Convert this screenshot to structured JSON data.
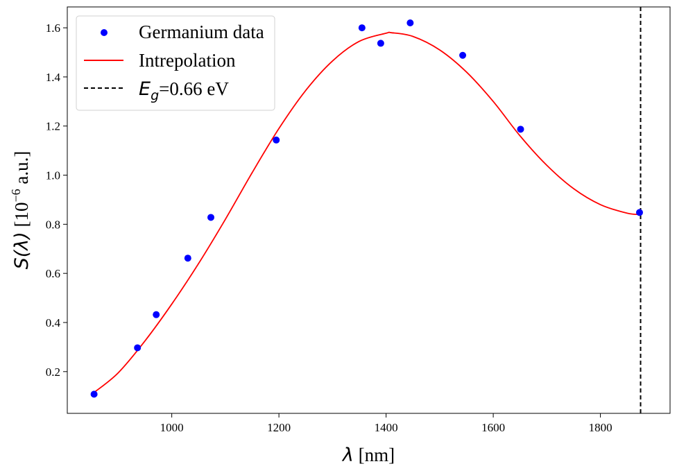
{
  "chart_data": {
    "type": "scatter",
    "title": "",
    "xlabel": {
      "symbol": "λ",
      "unit": " [nm]"
    },
    "ylabel": {
      "symbol": "S(λ)",
      "prefix": " [10",
      "exponent": "−6",
      "suffix": " a.u.]"
    },
    "xlim": [
      805,
      1930
    ],
    "ylim": [
      0.03,
      1.685
    ],
    "xticks": [
      1000,
      1200,
      1400,
      1600,
      1800
    ],
    "yticks": [
      0.2,
      0.4,
      0.6,
      0.8,
      1.0,
      1.2,
      1.4,
      1.6
    ],
    "grid": false,
    "legend_position": "top-left",
    "series": [
      {
        "name": "Germanium data",
        "kind": "scatter",
        "color": "#0000ff",
        "x": [
          855,
          936,
          971,
          1030,
          1073,
          1195,
          1355,
          1390,
          1445,
          1543,
          1651,
          1873
        ],
        "y": [
          0.108,
          0.297,
          0.432,
          0.662,
          0.828,
          1.143,
          1.6,
          1.537,
          1.62,
          1.488,
          1.187,
          0.848
        ]
      },
      {
        "name": "Intrepolation",
        "kind": "line",
        "color": "#ff0000",
        "knots_x": [
          855,
          900,
          950,
          1000,
          1050,
          1100,
          1150,
          1200,
          1250,
          1300,
          1350,
          1400,
          1410,
          1450,
          1500,
          1550,
          1600,
          1650,
          1700,
          1750,
          1800,
          1850,
          1873
        ],
        "knots_y": [
          0.115,
          0.195,
          0.325,
          0.475,
          0.64,
          0.82,
          1.01,
          1.19,
          1.345,
          1.465,
          1.545,
          1.578,
          1.58,
          1.565,
          1.51,
          1.42,
          1.3,
          1.16,
          1.04,
          0.945,
          0.88,
          0.845,
          0.84
        ]
      },
      {
        "name_symbol": "E",
        "name_sub": "g",
        "name_value": "=0.66 eV",
        "kind": "vline",
        "color": "#000000",
        "x": 1875
      }
    ]
  }
}
